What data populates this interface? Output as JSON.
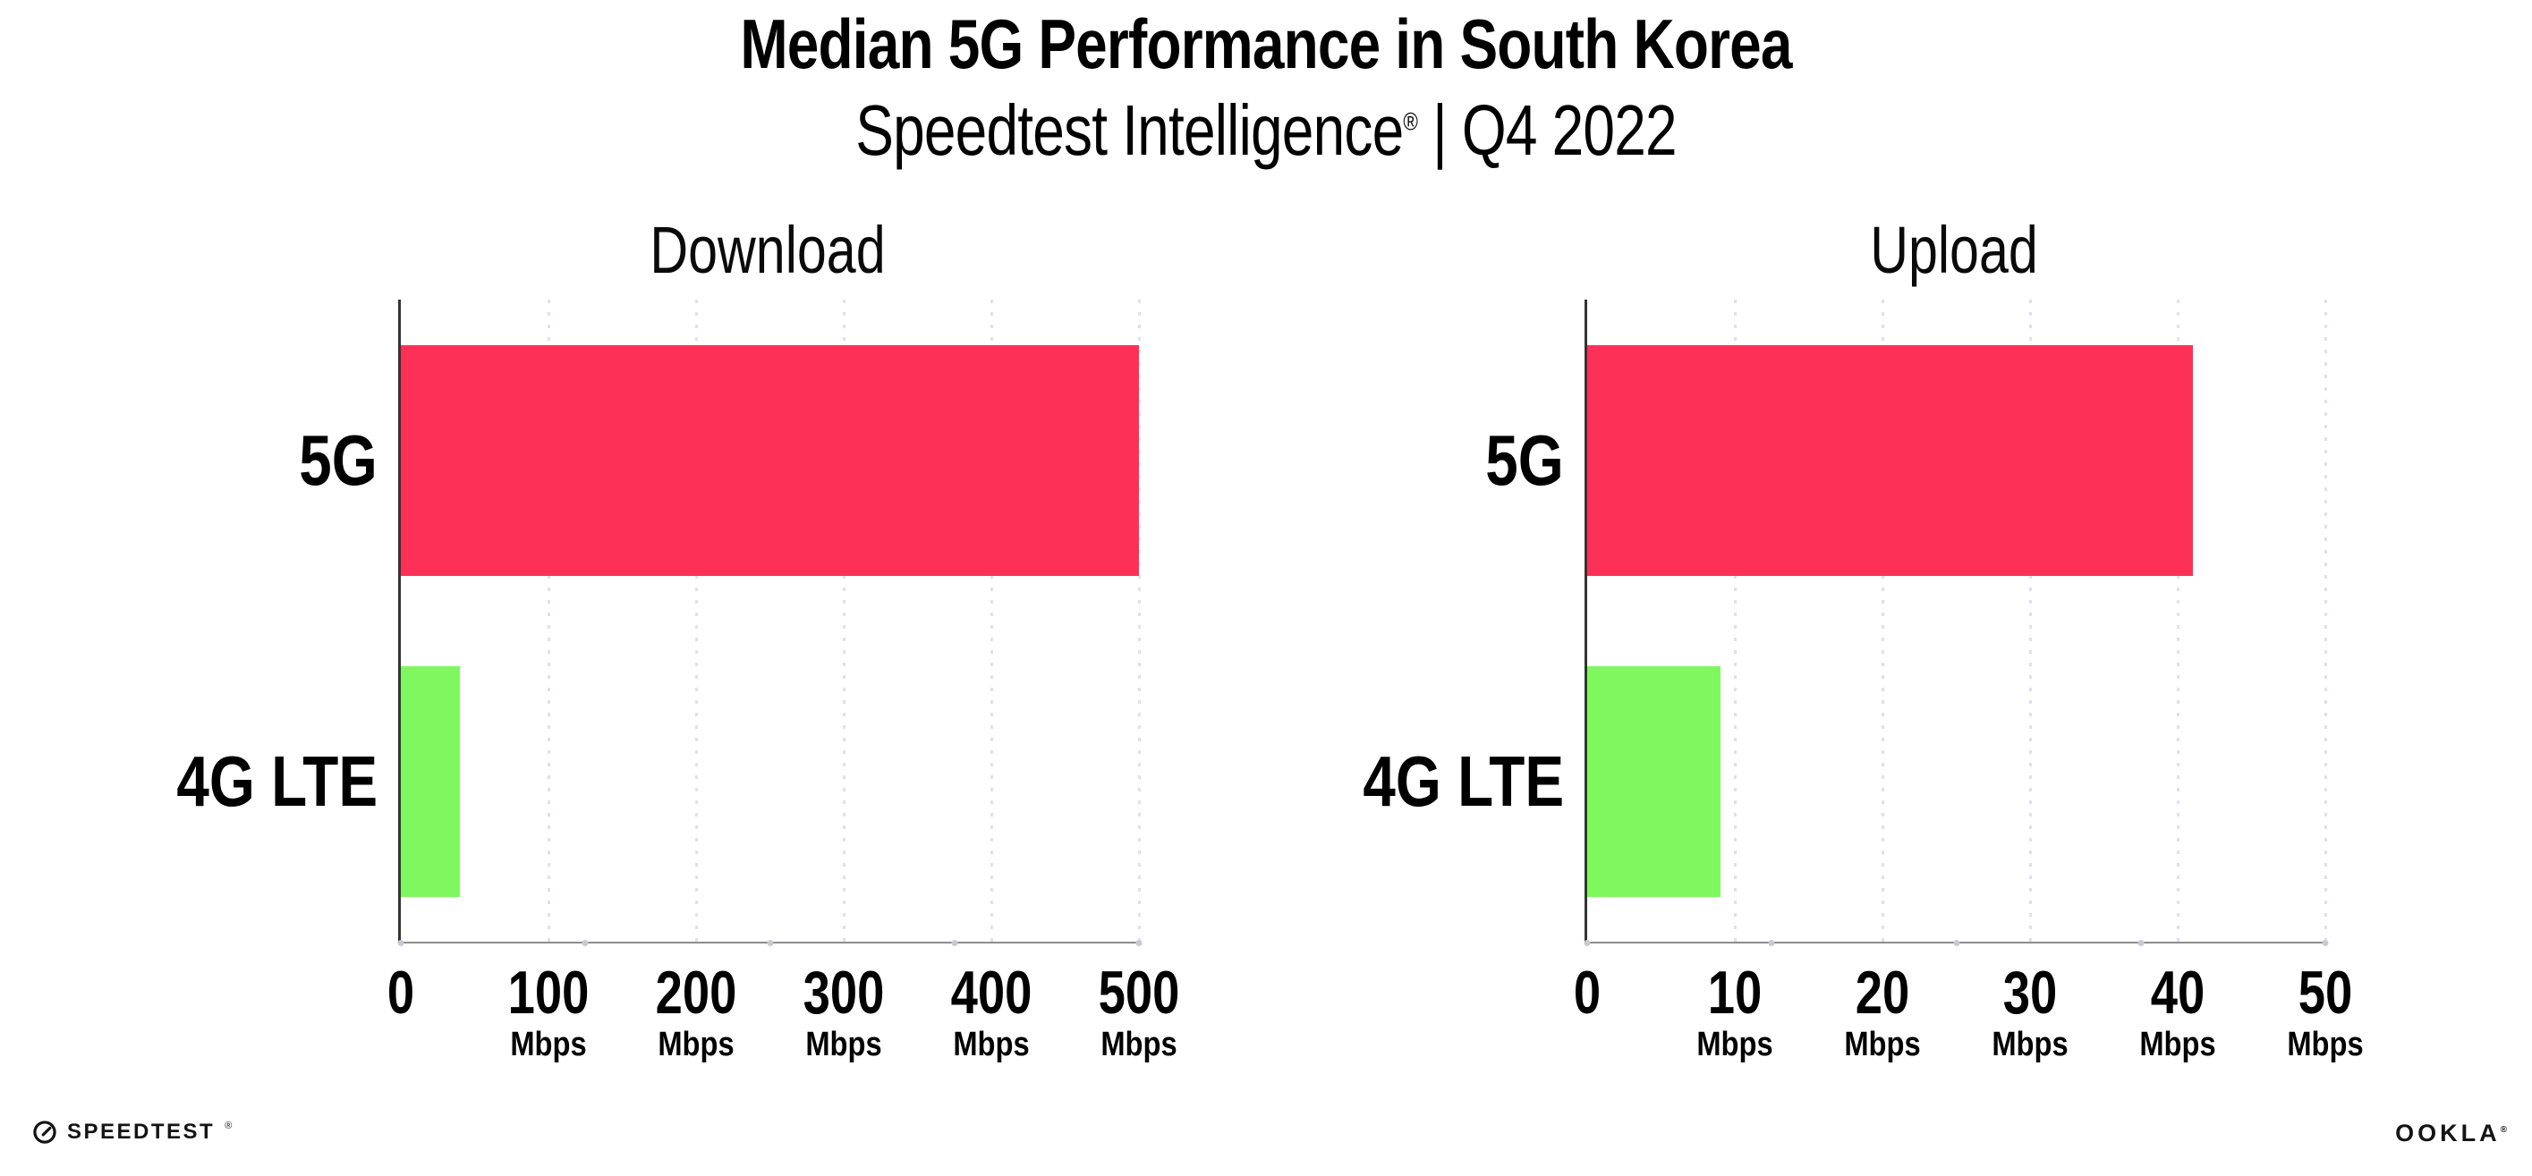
{
  "header": {
    "title": "Median 5G Performance in South Korea",
    "subtitle_brand": "Speedtest Intelligence",
    "subtitle_mark": "®",
    "subtitle_rest": " | Q4 2022"
  },
  "chart_data": [
    {
      "type": "bar",
      "orientation": "horizontal",
      "title": "Download",
      "categories": [
        "5G",
        "4G LTE"
      ],
      "values": [
        500,
        40
      ],
      "unit": "Mbps",
      "xlabel": "",
      "ylabel": "",
      "xlim": [
        0,
        500
      ],
      "ticks": [
        0,
        100,
        200,
        300,
        400,
        500
      ],
      "grid": "dotted vertical gridlines at each tick",
      "bar_colors": [
        "#fd3158",
        "#7ff860"
      ]
    },
    {
      "type": "bar",
      "orientation": "horizontal",
      "title": "Upload",
      "categories": [
        "5G",
        "4G LTE"
      ],
      "values": [
        41,
        9
      ],
      "unit": "Mbps",
      "xlabel": "",
      "ylabel": "",
      "xlim": [
        0,
        50
      ],
      "ticks": [
        0,
        10,
        20,
        30,
        40,
        50
      ],
      "grid": "dotted vertical gridlines at each tick",
      "bar_colors": [
        "#fd3158",
        "#7ff860"
      ]
    }
  ],
  "footer": {
    "speedtest_logo": "SPEEDTEST",
    "speedtest_mark": "®",
    "ookla_logo": "OOKLA",
    "ookla_mark": "®"
  },
  "colors": {
    "bar_5g": "#fd3158",
    "bar_4g_lte": "#7ff860",
    "gridline": "#e0e0ea",
    "baseline": "#8c8c8c",
    "axis_line": "#343434",
    "text": "#000000",
    "background": "#ffffff"
  }
}
